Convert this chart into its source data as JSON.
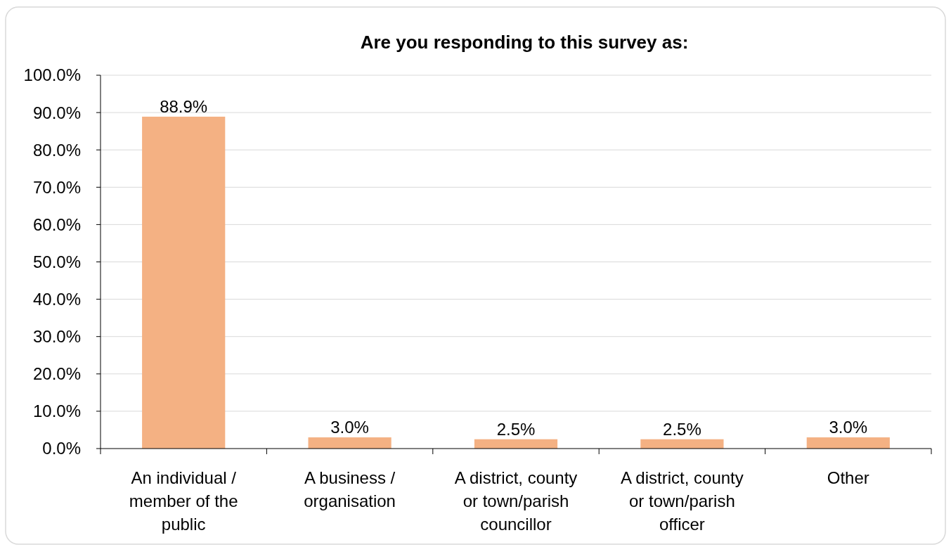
{
  "chart_data": {
    "type": "bar",
    "title": "Are you responding to this survey as:",
    "categories": [
      "An individual / member of the public",
      "A business / organisation",
      "A district, county or town/parish councillor",
      "A district, county or town/parish officer",
      "Other"
    ],
    "values": [
      88.9,
      3.0,
      2.5,
      2.5,
      3.0
    ],
    "value_labels": [
      "88.9%",
      "3.0%",
      "2.5%",
      "2.5%",
      "3.0%"
    ],
    "color": "#f4b183",
    "ylim": [
      0,
      100
    ],
    "yticks": [
      {
        "value": 0,
        "label": "0.0%"
      },
      {
        "value": 10,
        "label": "10.0%"
      },
      {
        "value": 20,
        "label": "20.0%"
      },
      {
        "value": 30,
        "label": "30.0%"
      },
      {
        "value": 40,
        "label": "40.0%"
      },
      {
        "value": 50,
        "label": "50.0%"
      },
      {
        "value": 60,
        "label": "60.0%"
      },
      {
        "value": 70,
        "label": "70.0%"
      },
      {
        "value": 80,
        "label": "80.0%"
      },
      {
        "value": 90,
        "label": "90.0%"
      },
      {
        "value": 100,
        "label": "100.0%"
      }
    ],
    "grid": "y"
  }
}
